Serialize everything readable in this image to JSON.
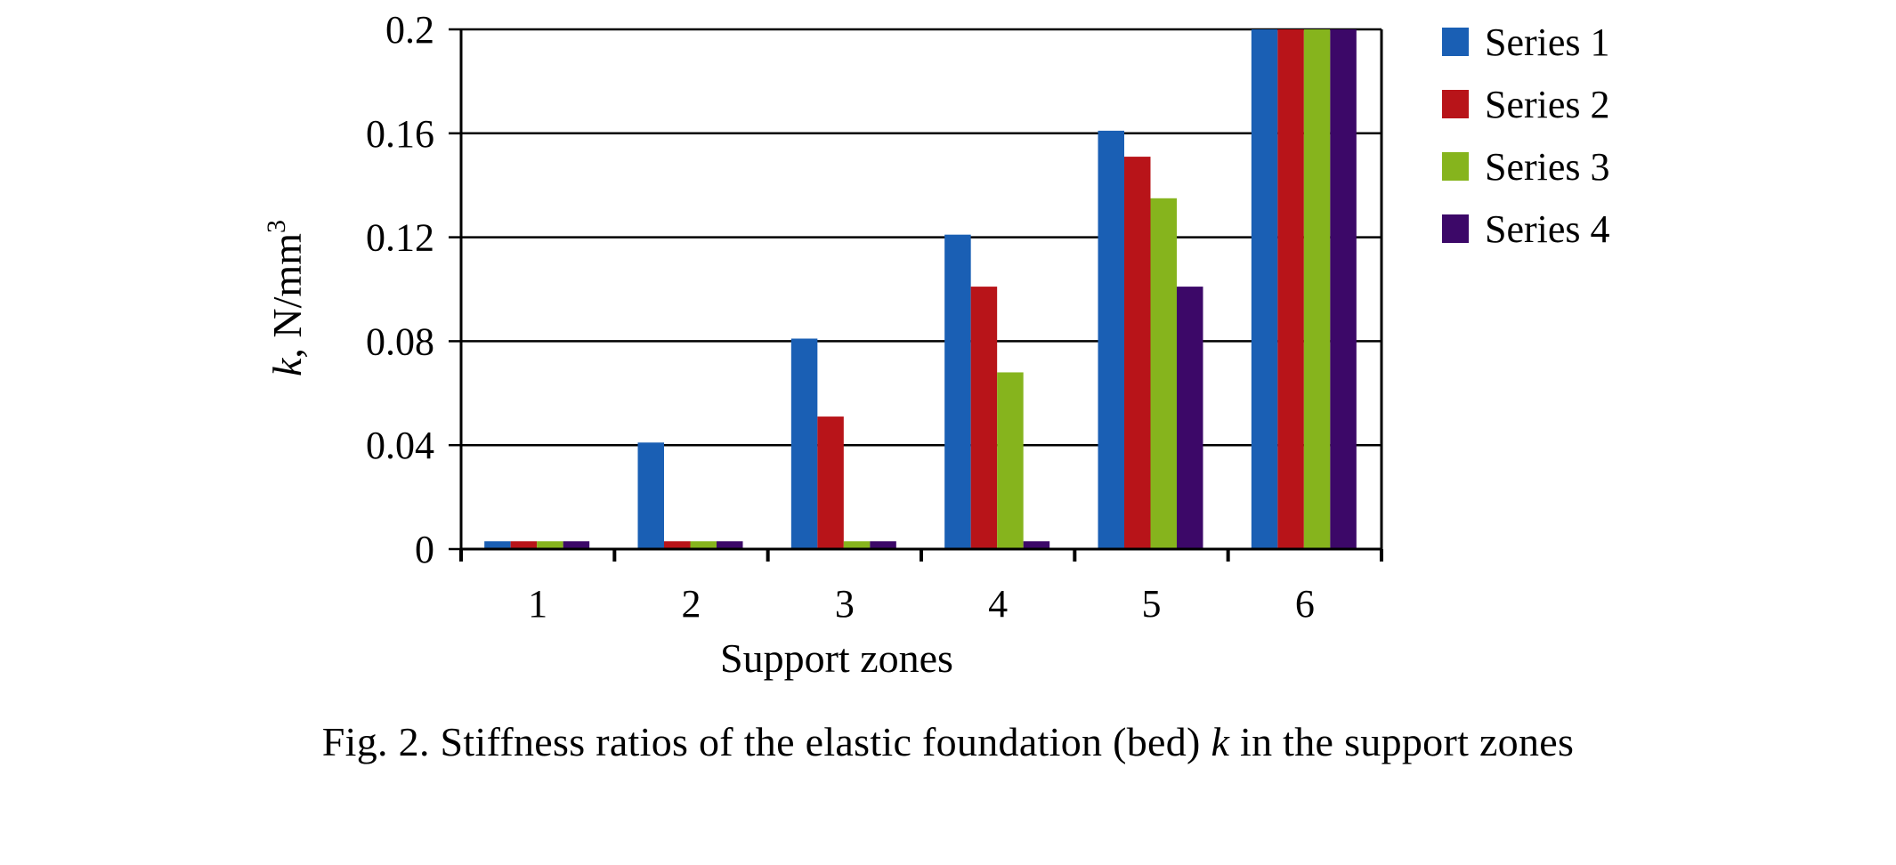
{
  "chart_data": {
    "type": "bar",
    "categories": [
      "1",
      "2",
      "3",
      "4",
      "5",
      "6"
    ],
    "series": [
      {
        "name": "Series 1",
        "color": "#1a5fb4",
        "values": [
          0.003,
          0.041,
          0.081,
          0.121,
          0.161,
          0.2
        ]
      },
      {
        "name": "Series 2",
        "color": "#b81419",
        "values": [
          0.003,
          0.003,
          0.051,
          0.101,
          0.151,
          0.2
        ]
      },
      {
        "name": "Series 3",
        "color": "#86b41d",
        "values": [
          0.003,
          0.003,
          0.003,
          0.068,
          0.135,
          0.2
        ]
      },
      {
        "name": "Series 4",
        "color": "#3c0868",
        "values": [
          0.003,
          0.003,
          0.003,
          0.003,
          0.101,
          0.2
        ]
      }
    ],
    "xlabel": "Support zones",
    "ylabel_var": "k",
    "ylabel_unit": ", N/mm",
    "ylabel_exp": "3",
    "ylim": [
      0,
      0.2
    ],
    "yticks": [
      "0",
      "0.04",
      "0.08",
      "0.12",
      "0.16",
      "0.2"
    ],
    "grid": true,
    "legend_position": "right"
  },
  "caption": {
    "before": "Fig. 2. Stiffness ratios of the elastic foundation (bed) ",
    "var": "k",
    "after": " in the support zones"
  }
}
